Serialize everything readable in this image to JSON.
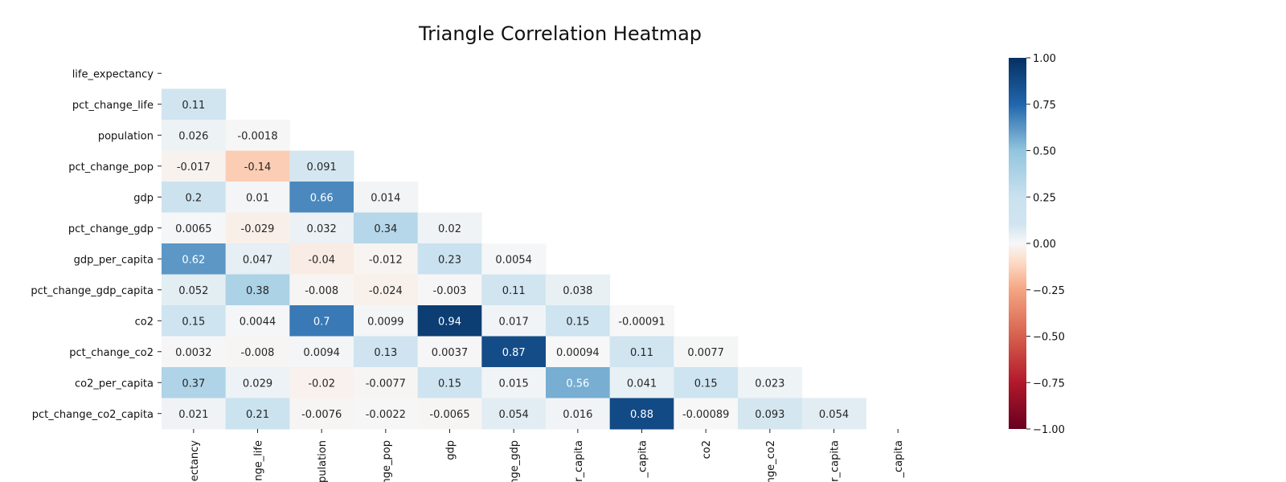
{
  "chart_data": {
    "type": "heatmap",
    "title": "Triangle Correlation Heatmap",
    "mask": "upper-triangle-including-diagonal",
    "variables": [
      "life_expectancy",
      "pct_change_life",
      "population",
      "pct_change_pop",
      "gdp",
      "pct_change_gdp",
      "gdp_per_capita",
      "pct_change_gdp_capita",
      "co2",
      "pct_change_co2",
      "co2_per_capita",
      "pct_change_co2_capita"
    ],
    "x_tick_labels_visible": [
      "ectancy",
      "nge_life",
      "opulation",
      "nge_pop",
      "gdp",
      "nge_gdp",
      "r_capita",
      "_capita",
      "co2",
      "nge_co2",
      "r_capita",
      "_capita"
    ],
    "rows": [
      {
        "label": "life_expectancy",
        "cells": []
      },
      {
        "label": "pct_change_life",
        "cells": [
          {
            "value": 0.11,
            "text": "0.11"
          }
        ]
      },
      {
        "label": "population",
        "cells": [
          {
            "value": 0.026,
            "text": "0.026"
          },
          {
            "value": -0.0018,
            "text": "-0.0018"
          }
        ]
      },
      {
        "label": "pct_change_pop",
        "cells": [
          {
            "value": -0.017,
            "text": "-0.017"
          },
          {
            "value": -0.14,
            "text": "-0.14"
          },
          {
            "value": 0.091,
            "text": "0.091"
          }
        ]
      },
      {
        "label": "gdp",
        "cells": [
          {
            "value": 0.2,
            "text": "0.2"
          },
          {
            "value": 0.01,
            "text": "0.01"
          },
          {
            "value": 0.66,
            "text": "0.66"
          },
          {
            "value": 0.014,
            "text": "0.014"
          }
        ]
      },
      {
        "label": "pct_change_gdp",
        "cells": [
          {
            "value": 0.0065,
            "text": "0.0065"
          },
          {
            "value": -0.029,
            "text": "-0.029"
          },
          {
            "value": 0.032,
            "text": "0.032"
          },
          {
            "value": 0.34,
            "text": "0.34"
          },
          {
            "value": 0.02,
            "text": "0.02"
          }
        ]
      },
      {
        "label": "gdp_per_capita",
        "cells": [
          {
            "value": 0.62,
            "text": "0.62"
          },
          {
            "value": 0.047,
            "text": "0.047"
          },
          {
            "value": -0.04,
            "text": "-0.04"
          },
          {
            "value": -0.012,
            "text": "-0.012"
          },
          {
            "value": 0.23,
            "text": "0.23"
          },
          {
            "value": 0.0054,
            "text": "0.0054"
          }
        ]
      },
      {
        "label": "pct_change_gdp_capita",
        "cells": [
          {
            "value": 0.052,
            "text": "0.052"
          },
          {
            "value": 0.38,
            "text": "0.38"
          },
          {
            "value": -0.008,
            "text": "-0.008"
          },
          {
            "value": -0.024,
            "text": "-0.024"
          },
          {
            "value": -0.003,
            "text": "-0.003"
          },
          {
            "value": 0.11,
            "text": "0.11"
          },
          {
            "value": 0.038,
            "text": "0.038"
          }
        ]
      },
      {
        "label": "co2",
        "cells": [
          {
            "value": 0.15,
            "text": "0.15"
          },
          {
            "value": 0.0044,
            "text": "0.0044"
          },
          {
            "value": 0.7,
            "text": "0.7"
          },
          {
            "value": 0.0099,
            "text": "0.0099"
          },
          {
            "value": 0.94,
            "text": "0.94"
          },
          {
            "value": 0.017,
            "text": "0.017"
          },
          {
            "value": 0.15,
            "text": "0.15"
          },
          {
            "value": -0.00091,
            "text": "-0.00091"
          }
        ]
      },
      {
        "label": "pct_change_co2",
        "cells": [
          {
            "value": 0.0032,
            "text": "0.0032"
          },
          {
            "value": -0.008,
            "text": "-0.008"
          },
          {
            "value": 0.0094,
            "text": "0.0094"
          },
          {
            "value": 0.13,
            "text": "0.13"
          },
          {
            "value": 0.0037,
            "text": "0.0037"
          },
          {
            "value": 0.87,
            "text": "0.87"
          },
          {
            "value": 0.00094,
            "text": "0.00094"
          },
          {
            "value": 0.11,
            "text": "0.11"
          },
          {
            "value": 0.0077,
            "text": "0.0077"
          }
        ]
      },
      {
        "label": "co2_per_capita",
        "cells": [
          {
            "value": 0.37,
            "text": "0.37"
          },
          {
            "value": 0.029,
            "text": "0.029"
          },
          {
            "value": -0.02,
            "text": "-0.02"
          },
          {
            "value": -0.0077,
            "text": "-0.0077"
          },
          {
            "value": 0.15,
            "text": "0.15"
          },
          {
            "value": 0.015,
            "text": "0.015"
          },
          {
            "value": 0.56,
            "text": "0.56"
          },
          {
            "value": 0.041,
            "text": "0.041"
          },
          {
            "value": 0.15,
            "text": "0.15"
          },
          {
            "value": 0.023,
            "text": "0.023"
          }
        ]
      },
      {
        "label": "pct_change_co2_capita",
        "cells": [
          {
            "value": 0.021,
            "text": "0.021"
          },
          {
            "value": 0.21,
            "text": "0.21"
          },
          {
            "value": -0.0076,
            "text": "-0.0076"
          },
          {
            "value": -0.0022,
            "text": "-0.0022"
          },
          {
            "value": -0.0065,
            "text": "-0.0065"
          },
          {
            "value": 0.054,
            "text": "0.054"
          },
          {
            "value": 0.016,
            "text": "0.016"
          },
          {
            "value": 0.88,
            "text": "0.88"
          },
          {
            "value": -0.00089,
            "text": "-0.00089"
          },
          {
            "value": 0.093,
            "text": "0.093"
          },
          {
            "value": 0.054,
            "text": "0.054"
          }
        ]
      }
    ],
    "colorbar": {
      "colormap": "RdBu",
      "vmin": -1.0,
      "vmax": 1.0,
      "ticks": [
        1.0,
        0.75,
        0.5,
        0.25,
        0.0,
        -0.25,
        -0.5,
        -0.75,
        -1.0
      ],
      "tick_labels": [
        "1.00",
        "0.75",
        "0.50",
        "0.25",
        "0.00",
        "−0.25",
        "−0.50",
        "−0.75",
        "−1.00"
      ],
      "stops": [
        {
          "v": -1.0,
          "color": "#67001f"
        },
        {
          "v": -0.75,
          "color": "#b2182b"
        },
        {
          "v": -0.5,
          "color": "#d6604d"
        },
        {
          "v": -0.25,
          "color": "#f4a582"
        },
        {
          "v": -0.1,
          "color": "#fddbc7"
        },
        {
          "v": 0.0,
          "color": "#f7f7f7"
        },
        {
          "v": 0.1,
          "color": "#d1e5f0"
        },
        {
          "v": 0.25,
          "color": "#c9e1ef"
        },
        {
          "v": 0.5,
          "color": "#92c5de"
        },
        {
          "v": 0.75,
          "color": "#2166ac"
        },
        {
          "v": 1.0,
          "color": "#053061"
        }
      ]
    },
    "text_color_dark": "#262626",
    "text_color_light": "#ffffff"
  }
}
